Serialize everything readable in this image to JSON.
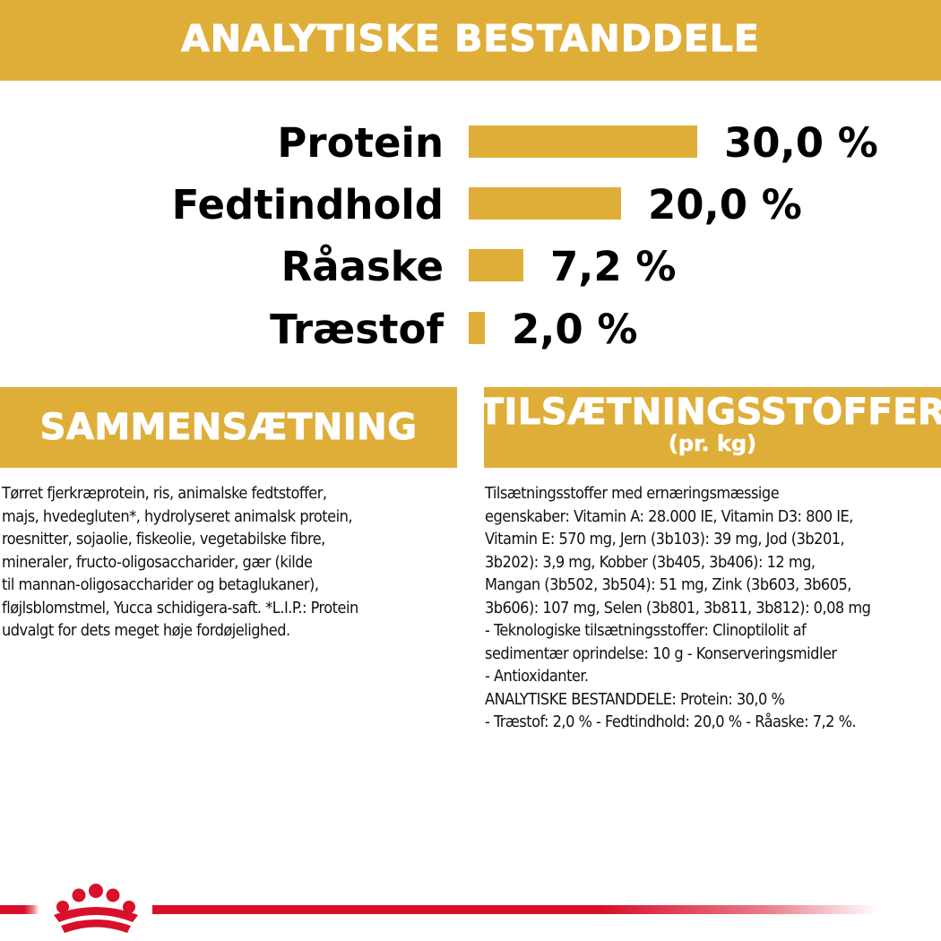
{
  "header": {
    "title": "ANALYTISKE BESTANDDELE"
  },
  "analysis": {
    "items": [
      {
        "label": "Protein",
        "value_text": "30,0 %",
        "value": 30.0
      },
      {
        "label": "Fedtindhold",
        "value_text": "20,0 %",
        "value": 20.0
      },
      {
        "label": "Råaske",
        "value_text": "7,2 %",
        "value": 7.2
      },
      {
        "label": "Træstof",
        "value_text": "2,0 %",
        "value": 2.0
      }
    ]
  },
  "composition": {
    "title": "SAMMENSÆTNING",
    "text": "Tørret fjerkræprotein, ris, animalske fedtstoffer,\nmajs, hvedegluten*, hydrolyseret animalsk protein,\nroesnitter, sojaolie, fiskeolie, vegetabilske fibre,\nmineraler, fructo-oligosaccharider, gær (kilde\ntil mannan-oligosaccharider og betaglukaner),\nfløjlsblomstmel, Yucca schidigera-saft. *L.I.P.: Protein\nudvalgt for dets meget høje fordøjelighed."
  },
  "additives": {
    "title": "TILSÆTNINGSSTOFFER",
    "subtitle": "(pr. kg)",
    "text": "Tilsætningsstoffer med ernæringsmæssige\negenskaber: Vitamin A: 28.000 IE, Vitamin D3: 800 IE,\nVitamin E: 570 mg, Jern (3b103): 39 mg, Jod (3b201,\n3b202): 3,9 mg, Kobber (3b405, 3b406): 12 mg,\nMangan (3b502, 3b504): 51 mg, Zink (3b603, 3b605,\n3b606): 107 mg, Selen (3b801, 3b811, 3b812): 0,08 mg\n- Teknologiske tilsætningsstoffer: Clinoptilolit af\nsedimentær oprindelse: 10 g - Konserveringsmidler\n- Antioxidanter.\nANALYTISKE BESTANDDELE: Protein: 30,0 %\n- Træstof: 2,0 % - Fedtindhold: 20,0 % - Råaske: 7,2 %."
  },
  "colors": {
    "accent": "#dfae39",
    "brand_red": "#d8102a",
    "text": "#111111"
  },
  "footer": {
    "logo_icon": "royal-canin-crown-icon"
  }
}
